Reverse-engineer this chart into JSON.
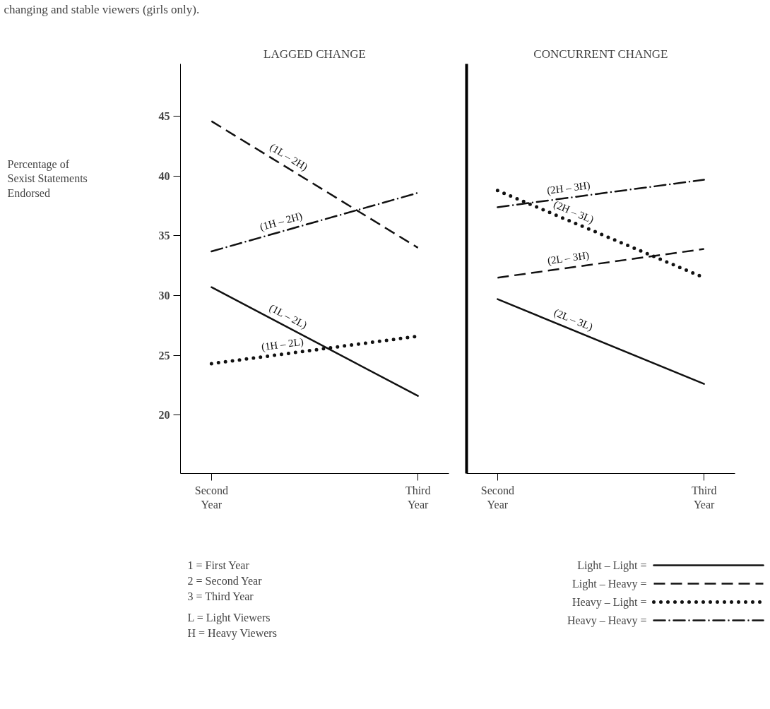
{
  "chart_data": [
    {
      "type": "line",
      "title": "LAGGED CHANGE",
      "ylabel": "Percentage of Sexist Statements Endorsed",
      "categories": [
        "Second\nYear",
        "Third\nYear"
      ],
      "ylim": [
        15.1,
        49.4
      ],
      "yticks": [
        20,
        25,
        30,
        35,
        40,
        45
      ],
      "grid": false,
      "marker": "none",
      "series": [
        {
          "name": "(1L – 2H)",
          "color": "#111111",
          "line_style": "dashed",
          "values": [
            44.6,
            34.0
          ]
        },
        {
          "name": "(1H – 2H)",
          "color": "#111111",
          "line_style": "dashdot",
          "values": [
            33.7,
            38.6
          ]
        },
        {
          "name": "(1L – 2L)",
          "color": "#111111",
          "line_style": "solid",
          "values": [
            30.7,
            21.6
          ]
        },
        {
          "name": "(1H – 2L)",
          "color": "#111111",
          "line_style": "dotted",
          "values": [
            24.3,
            26.6
          ]
        }
      ],
      "annotations": [
        "changing and stable viewers (girls only).",
        "1 = First Year",
        "2 = Second Year",
        "3 = Third Year",
        "L = Light Viewers",
        "H = Heavy Viewers"
      ]
    },
    {
      "type": "line",
      "title": "CONCURRENT CHANGE",
      "categories": [
        "Second\nYear",
        "Third\nYear"
      ],
      "ylim": [
        15.1,
        49.4
      ],
      "tick_labels": "x",
      "grid": false,
      "marker": "none",
      "series": [
        {
          "name": "(2L – 3L)",
          "color": "#111111",
          "line_style": "solid",
          "values": [
            29.7,
            22.6
          ]
        },
        {
          "name": "(2L – 3H)",
          "color": "#111111",
          "line_style": "dashed",
          "values": [
            31.5,
            33.9
          ]
        },
        {
          "name": "(2H – 3L)",
          "color": "#111111",
          "line_style": "dotted",
          "values": [
            38.8,
            31.5
          ]
        },
        {
          "name": "(2H – 3H)",
          "color": "#111111",
          "line_style": "dashdot",
          "values": [
            37.4,
            39.7
          ]
        }
      ],
      "annotations": [
        "Light – Light =",
        "Light – Heavy =",
        "Heavy – Light =",
        "Heavy – Heavy ="
      ]
    }
  ]
}
